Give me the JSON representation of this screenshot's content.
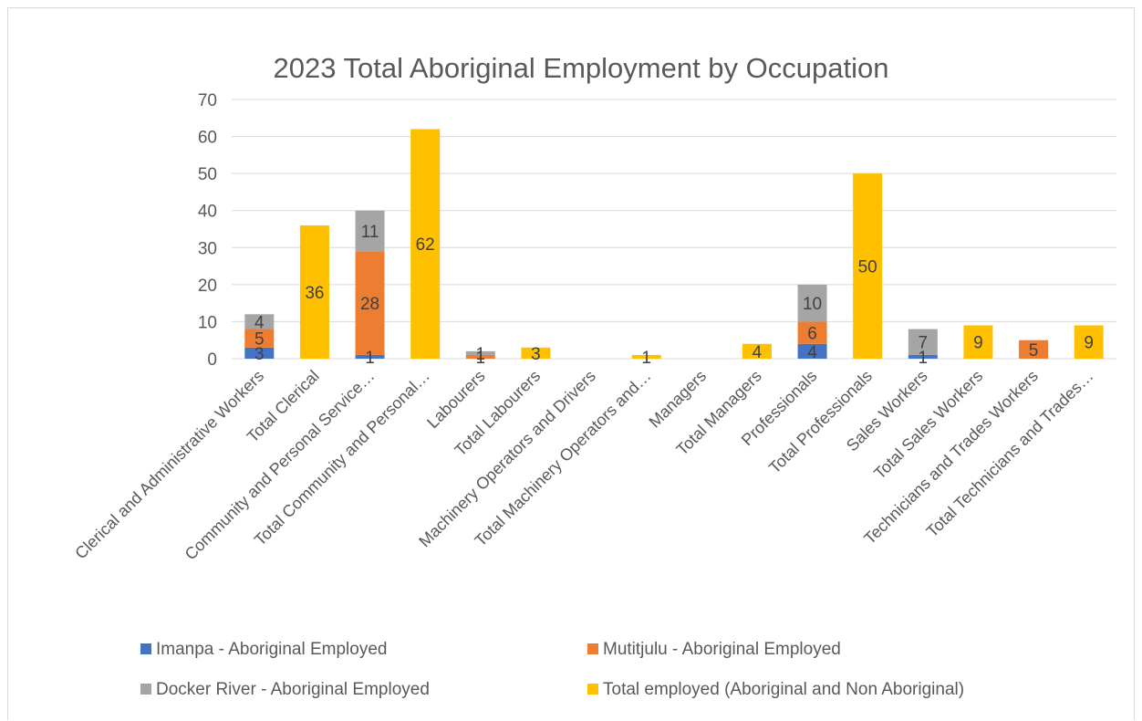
{
  "chart_data": {
    "type": "bar",
    "stacked": true,
    "title": "2023 Total Aboriginal Employment by Occupation",
    "xlabel": "",
    "ylabel": "",
    "ylim": [
      0,
      70
    ],
    "yticks": [
      0,
      10,
      20,
      30,
      40,
      50,
      60,
      70
    ],
    "grid": true,
    "legend_position": "bottom",
    "categories": [
      "Clerical and Administrative Workers",
      "Total Clerical",
      "Community and Personal Service…",
      "Total Community and Personal…",
      "Labourers",
      "Total Labourers",
      "Machinery Operators and Drivers",
      "Total Machinery Operators and…",
      "Managers",
      "Total Managers",
      "Professionals",
      "Total Professionals",
      "Sales Workers",
      "Total Sales Workers",
      "Technicians and Trades Workers",
      "Total Technicians and Trades…"
    ],
    "series": [
      {
        "name": "Imanpa  - Aboriginal Employed",
        "color": "#4472c4",
        "values": [
          3,
          null,
          1,
          null,
          null,
          null,
          null,
          null,
          null,
          null,
          4,
          null,
          1,
          null,
          null,
          null
        ],
        "labels": [
          "3",
          "",
          "1",
          "",
          "",
          "",
          "",
          "",
          "",
          "",
          "4",
          "",
          "1",
          "",
          "",
          ""
        ]
      },
      {
        "name": "Mutitjulu  - Aboriginal Employed",
        "color": "#ed7d31",
        "values": [
          5,
          null,
          28,
          null,
          1,
          null,
          null,
          null,
          null,
          null,
          6,
          null,
          null,
          null,
          5,
          null
        ],
        "labels": [
          "5",
          "",
          "28",
          "",
          "1",
          "",
          "",
          "",
          "",
          "",
          "6",
          "",
          "",
          "",
          "5",
          ""
        ]
      },
      {
        "name": "Docker River  - Aboriginal Employed",
        "color": "#a5a5a5",
        "values": [
          4,
          null,
          11,
          null,
          1,
          null,
          null,
          null,
          null,
          null,
          10,
          null,
          7,
          null,
          null,
          null
        ],
        "labels": [
          "4",
          "",
          "11",
          "",
          "1",
          "",
          "",
          "",
          "",
          "",
          "10",
          "",
          "7",
          "",
          "",
          ""
        ]
      },
      {
        "name": "Total employed (Aboriginal and Non Aboriginal)",
        "color": "#ffc000",
        "values": [
          null,
          36,
          null,
          62,
          null,
          3,
          null,
          1,
          null,
          4,
          null,
          50,
          null,
          9,
          null,
          9
        ],
        "labels": [
          "",
          "36",
          "",
          "62",
          "",
          "3",
          "",
          "1",
          "",
          "4",
          "",
          "50",
          "",
          "9",
          "",
          "9"
        ]
      }
    ]
  }
}
